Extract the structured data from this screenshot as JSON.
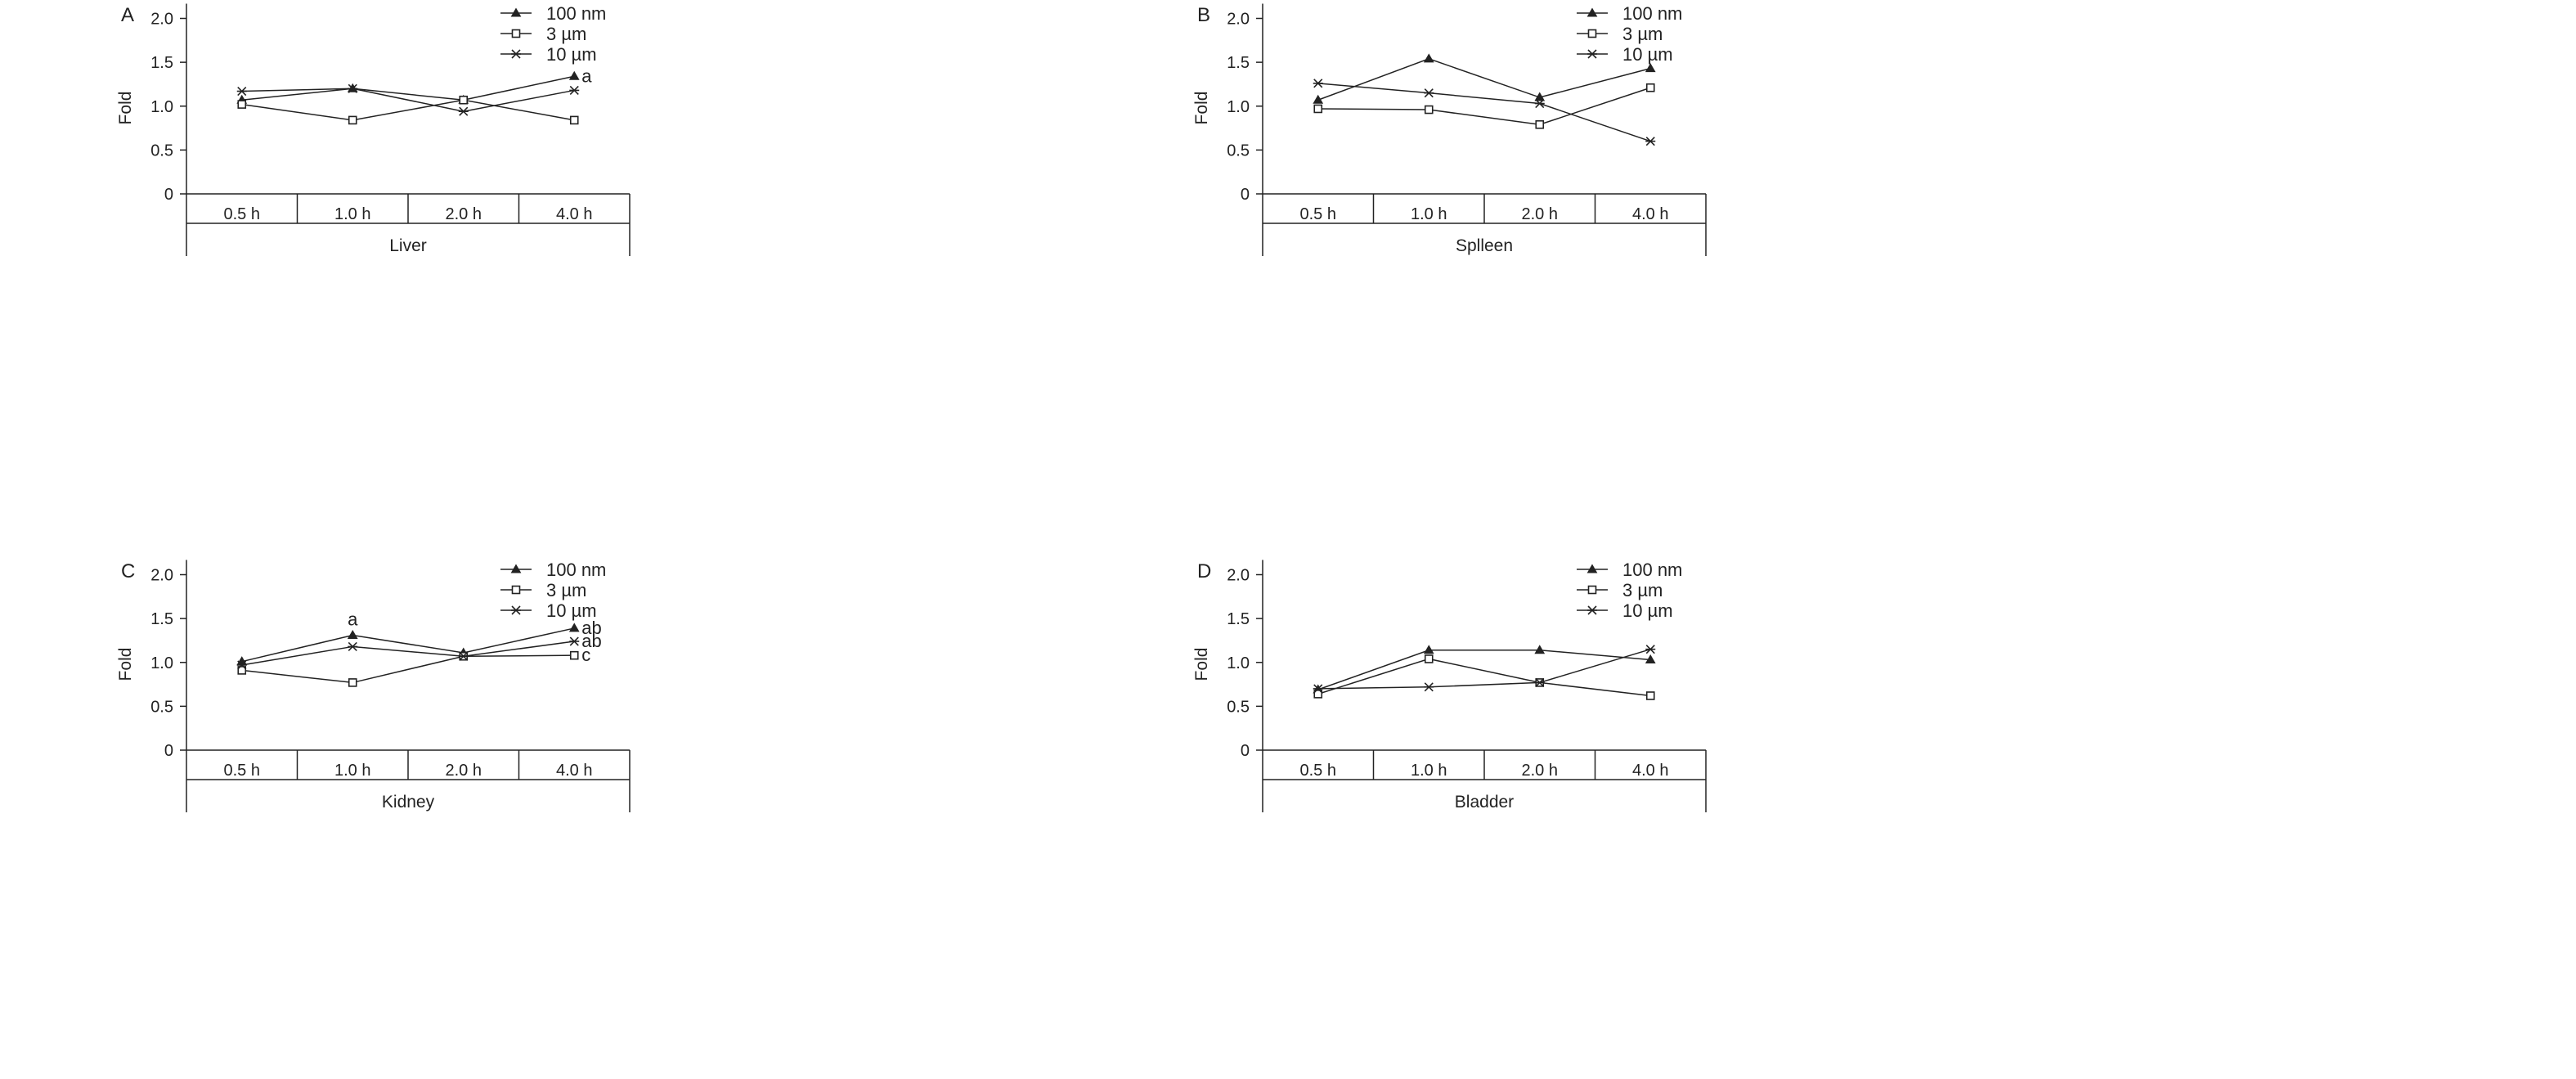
{
  "colors": {
    "line": "#222222",
    "axis": "#222222",
    "background": "#ffffff"
  },
  "chart_data": [
    {
      "type": "line",
      "panel_label": "A",
      "title": "",
      "xlabel": "Liver",
      "ylabel": "Fold",
      "categories": [
        "0.5 h",
        "1.0 h",
        "2.0 h",
        "4.0 h"
      ],
      "ylim": [
        0,
        2.0
      ],
      "yticks": [
        "0",
        "0.5",
        "1.0",
        "1.5",
        "2.0"
      ],
      "grid": false,
      "legend_position": "top-right",
      "series": [
        {
          "name": "100 nm",
          "marker": "filled-triangle",
          "values": [
            1.07,
            1.2,
            1.07,
            1.34
          ]
        },
        {
          "name": "3 µm",
          "marker": "open-square",
          "values": [
            1.02,
            0.84,
            1.07,
            0.84
          ]
        },
        {
          "name": "10 µm",
          "marker": "asterisk",
          "values": [
            1.17,
            1.2,
            0.94,
            1.18
          ]
        }
      ],
      "annotations": [
        {
          "series": "100 nm",
          "category": "4.0 h",
          "text": "a"
        }
      ]
    },
    {
      "type": "line",
      "panel_label": "B",
      "title": "",
      "xlabel": "Splleen",
      "ylabel": "Fold",
      "categories": [
        "0.5 h",
        "1.0 h",
        "2.0 h",
        "4.0 h"
      ],
      "ylim": [
        0,
        2.0
      ],
      "yticks": [
        "0",
        "0.5",
        "1.0",
        "1.5",
        "2.0"
      ],
      "grid": false,
      "legend_position": "top-right",
      "series": [
        {
          "name": "100 nm",
          "marker": "filled-triangle",
          "values": [
            1.07,
            1.54,
            1.1,
            1.43
          ]
        },
        {
          "name": "3 µm",
          "marker": "open-square",
          "values": [
            0.97,
            0.96,
            0.79,
            1.21
          ]
        },
        {
          "name": "10 µm",
          "marker": "asterisk",
          "values": [
            1.26,
            1.15,
            1.03,
            0.6
          ]
        }
      ],
      "annotations": []
    },
    {
      "type": "line",
      "panel_label": "C",
      "title": "",
      "xlabel": "Kidney",
      "ylabel": "Fold",
      "categories": [
        "0.5 h",
        "1.0 h",
        "2.0 h",
        "4.0 h"
      ],
      "ylim": [
        0,
        2.0
      ],
      "yticks": [
        "0",
        "0.5",
        "1.0",
        "1.5",
        "2.0"
      ],
      "grid": false,
      "legend_position": "top-right",
      "series": [
        {
          "name": "100 nm",
          "marker": "filled-triangle",
          "values": [
            1.01,
            1.31,
            1.11,
            1.39
          ]
        },
        {
          "name": "3 µm",
          "marker": "open-square",
          "values": [
            0.91,
            0.77,
            1.07,
            1.08
          ]
        },
        {
          "name": "10 µm",
          "marker": "asterisk",
          "values": [
            0.97,
            1.18,
            1.07,
            1.24
          ]
        }
      ],
      "annotations": [
        {
          "series": "100 nm",
          "category": "1.0 h",
          "text": "a"
        },
        {
          "series": "100 nm",
          "category": "4.0 h",
          "text": "ab"
        },
        {
          "series": "10 µm",
          "category": "4.0 h",
          "text": "ab"
        },
        {
          "series": "3 µm",
          "category": "4.0 h",
          "text": "c"
        }
      ]
    },
    {
      "type": "line",
      "panel_label": "D",
      "title": "",
      "xlabel": "Bladder",
      "ylabel": "Fold",
      "categories": [
        "0.5 h",
        "1.0 h",
        "2.0 h",
        "4.0 h"
      ],
      "ylim": [
        0,
        2.0
      ],
      "yticks": [
        "0",
        "0.5",
        "1.0",
        "1.5",
        "2.0"
      ],
      "grid": false,
      "legend_position": "top-right",
      "series": [
        {
          "name": "100 nm",
          "marker": "filled-triangle",
          "values": [
            0.69,
            1.14,
            1.14,
            1.03
          ]
        },
        {
          "name": "3 µm",
          "marker": "open-square",
          "values": [
            0.64,
            1.04,
            0.77,
            0.62
          ]
        },
        {
          "name": "10 µm",
          "marker": "asterisk",
          "values": [
            0.7,
            0.72,
            0.77,
            1.15
          ]
        }
      ],
      "annotations": []
    }
  ]
}
